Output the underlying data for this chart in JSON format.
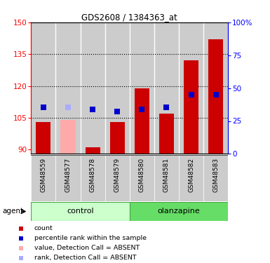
{
  "title": "GDS2608 / 1384363_at",
  "samples": [
    "GSM48559",
    "GSM48577",
    "GSM48578",
    "GSM48579",
    "GSM48580",
    "GSM48581",
    "GSM48582",
    "GSM48583"
  ],
  "bar_values": [
    103,
    104,
    91,
    103,
    119,
    107,
    132,
    142
  ],
  "bar_colors": [
    "#cc0000",
    "#ffaaaa",
    "#cc0000",
    "#cc0000",
    "#cc0000",
    "#cc0000",
    "#cc0000",
    "#cc0000"
  ],
  "rank_values": [
    110,
    110,
    109,
    108,
    109,
    110,
    116,
    116
  ],
  "rank_colors": [
    "#0000cc",
    "#aaaaff",
    "#0000cc",
    "#0000cc",
    "#0000cc",
    "#0000cc",
    "#0000cc",
    "#0000cc"
  ],
  "ylim_left": [
    88,
    150
  ],
  "ylim_right": [
    0,
    100
  ],
  "yticks_left": [
    90,
    105,
    120,
    135,
    150
  ],
  "yticks_right": [
    0,
    25,
    50,
    75,
    100
  ],
  "ytick_labels_right": [
    "0",
    "25",
    "50",
    "75",
    "100%"
  ],
  "baseline": 88,
  "bar_width": 0.6,
  "rank_marker_size": 28,
  "control_color_light": "#ccffcc",
  "control_color_dark": "#66cc66",
  "olanzapine_color_light": "#66dd66",
  "olanzapine_color_dark": "#00aa00",
  "sample_bg": "#cccccc",
  "legend_items": [
    [
      "#cc0000",
      "count"
    ],
    [
      "#0000cc",
      "percentile rank within the sample"
    ],
    [
      "#ffaaaa",
      "value, Detection Call = ABSENT"
    ],
    [
      "#aaaaff",
      "rank, Detection Call = ABSENT"
    ]
  ]
}
